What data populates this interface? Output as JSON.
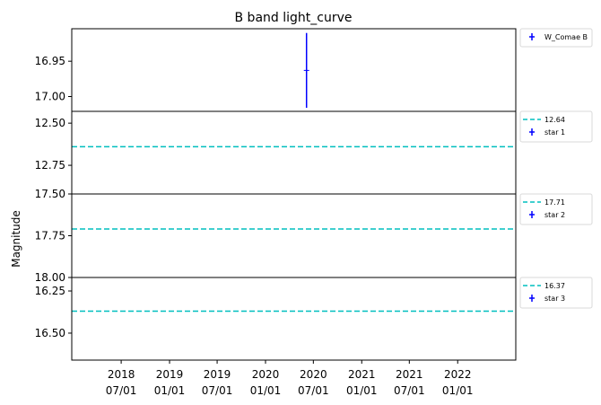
{
  "title": "B band light_curve",
  "ylabel": "Magnitude",
  "colors": {
    "errorbar": "#0000ff",
    "reference": "#00bfbf",
    "axis": "#000000"
  },
  "chart_data": {
    "type": "scatter",
    "title": "B band light_curve",
    "ylabel": "Magnitude",
    "x_axis": {
      "type": "date",
      "range": [
        "2017-12-25",
        "2022-08-10"
      ],
      "ticks": [
        {
          "date": "2018-07-01",
          "label": [
            "2018",
            "07/01"
          ]
        },
        {
          "date": "2019-01-01",
          "label": [
            "2019",
            "01/01"
          ]
        },
        {
          "date": "2019-07-01",
          "label": [
            "2019",
            "07/01"
          ]
        },
        {
          "date": "2020-01-01",
          "label": [
            "2020",
            "01/01"
          ]
        },
        {
          "date": "2020-07-01",
          "label": [
            "2020",
            "07/01"
          ]
        },
        {
          "date": "2021-01-01",
          "label": [
            "2021",
            "01/01"
          ]
        },
        {
          "date": "2021-07-01",
          "label": [
            "2021",
            "07/01"
          ]
        },
        {
          "date": "2022-01-01",
          "label": [
            "2022",
            "01/01"
          ]
        }
      ]
    },
    "panels": [
      {
        "ylim": [
          17.021,
          16.904
        ],
        "y_inverted": true,
        "yticks": [
          16.95,
          17.0
        ],
        "ytick_labels": [
          "16.95",
          "17.00"
        ],
        "legend": [
          {
            "kind": "errorbar",
            "label": "W_Comae B"
          }
        ],
        "series": [
          {
            "kind": "errorbar",
            "legend_label": "W_Comae B",
            "points": [
              {
                "date": "2020-06-05",
                "y": 16.963,
                "yerr": 0.053
              }
            ]
          }
        ]
      },
      {
        "ylim": [
          12.92,
          12.43
        ],
        "y_inverted": true,
        "yticks": [
          12.5,
          12.75
        ],
        "ytick_labels": [
          "12.50",
          "12.75"
        ],
        "legend": [
          {
            "kind": "hline",
            "label": "12.64"
          },
          {
            "kind": "errorbar",
            "label": "star 1"
          }
        ],
        "series": [
          {
            "kind": "hline",
            "legend_label": "12.64",
            "y": 12.64
          },
          {
            "kind": "errorbar",
            "legend_label": "star 1",
            "points": []
          }
        ]
      },
      {
        "ylim": [
          18.0,
          17.5
        ],
        "y_inverted": true,
        "yticks": [
          17.5,
          17.75,
          18.0
        ],
        "ytick_labels": [
          "17.50",
          "17.75",
          "18.00"
        ],
        "legend": [
          {
            "kind": "hline",
            "label": "17.71"
          },
          {
            "kind": "errorbar",
            "label": "star 2"
          }
        ],
        "series": [
          {
            "kind": "hline",
            "legend_label": "17.71",
            "y": 17.71
          },
          {
            "kind": "errorbar",
            "legend_label": "star 2",
            "points": []
          }
        ]
      },
      {
        "ylim": [
          16.66,
          16.17
        ],
        "y_inverted": true,
        "yticks": [
          16.25,
          16.5
        ],
        "ytick_labels": [
          "16.25",
          "16.50"
        ],
        "legend": [
          {
            "kind": "hline",
            "label": "16.37"
          },
          {
            "kind": "errorbar",
            "label": "star 3"
          }
        ],
        "series": [
          {
            "kind": "hline",
            "legend_label": "16.37",
            "y": 16.37
          },
          {
            "kind": "errorbar",
            "legend_label": "star 3",
            "points": []
          }
        ]
      }
    ]
  }
}
